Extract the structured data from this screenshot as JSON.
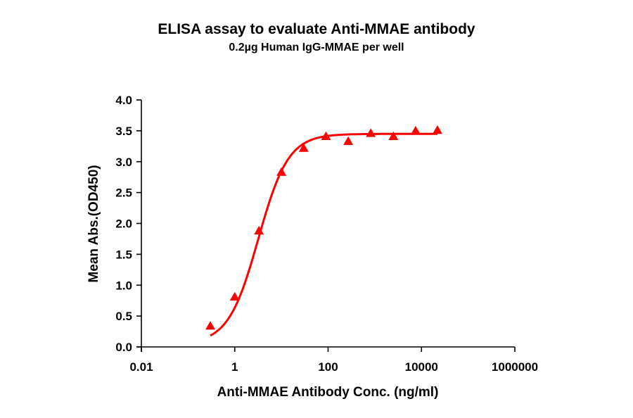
{
  "chart_data": {
    "type": "scatter",
    "title": "ELISA assay to evaluate Anti-MMAE antibody",
    "subtitle": "0.2µg Human IgG-MMAE per well",
    "xlabel": "Anti-MMAE Antibody Conc. (ng/ml)",
    "ylabel": "Mean Abs.(OD450)",
    "xscale": "log",
    "xlim": [
      0.01,
      1000000
    ],
    "ylim": [
      0,
      4.0
    ],
    "xticks": [
      "0.01",
      "1",
      "100",
      "10000",
      "1000000"
    ],
    "yticks": [
      "0.0",
      "0.5",
      "1.0",
      "1.5",
      "2.0",
      "2.5",
      "3.0",
      "3.5",
      "4.0"
    ],
    "grid": false,
    "legend": null,
    "series": [
      {
        "name": "Anti-MMAE antibody",
        "marker": "triangle",
        "color": "#FF0000",
        "x": [
          0.3,
          1.0,
          3.3,
          10,
          30,
          90,
          270,
          820,
          2500,
          7500,
          22000
        ],
        "y": [
          0.34,
          0.81,
          1.88,
          2.83,
          3.22,
          3.41,
          3.33,
          3.46,
          3.41,
          3.5,
          3.51
        ]
      }
    ],
    "fit": {
      "type": "4PL sigmoid",
      "color": "#FF0000",
      "bottom": 0.05,
      "top": 3.45,
      "ec50": 3.2,
      "hill": 1.35
    }
  }
}
